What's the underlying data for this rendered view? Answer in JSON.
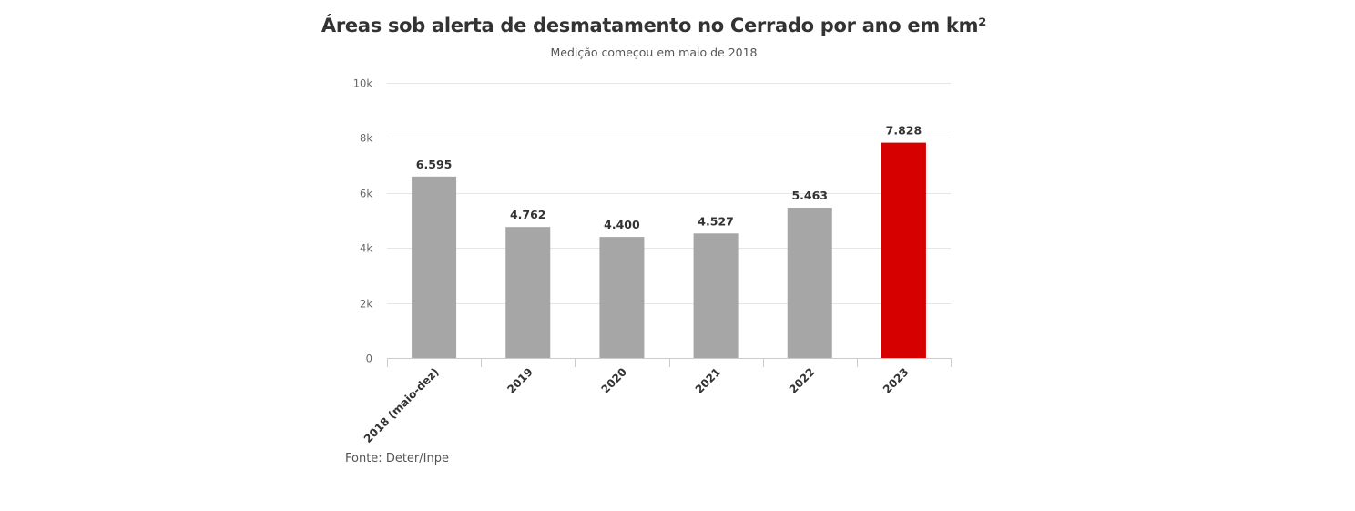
{
  "chart_data": {
    "type": "bar",
    "title": "Áreas sob alerta de desmatamento no Cerrado por ano em km²",
    "subtitle": "Medição começou em maio de 2018",
    "source": "Fonte: Deter/Inpe",
    "categories": [
      "2018 (maio-dez)",
      "2019",
      "2020",
      "2021",
      "2022",
      "2023"
    ],
    "values": [
      6595,
      4762,
      4400,
      4527,
      5463,
      7828
    ],
    "data_labels": [
      "6.595",
      "4.762",
      "4.400",
      "4.527",
      "5.463",
      "7.828"
    ],
    "ylim": [
      0,
      10000
    ],
    "yticks": [
      0,
      2000,
      4000,
      6000,
      8000,
      10000
    ],
    "ytick_labels": [
      "0",
      "2k",
      "4k",
      "6k",
      "8k",
      "10k"
    ],
    "grid": true,
    "legend": false,
    "colors": {
      "default_bar": "#a6a6a6",
      "highlight_bar": "#d60000",
      "highlight_index": 5,
      "grid": "#e6e6e6",
      "axis": "#cccccc"
    }
  }
}
